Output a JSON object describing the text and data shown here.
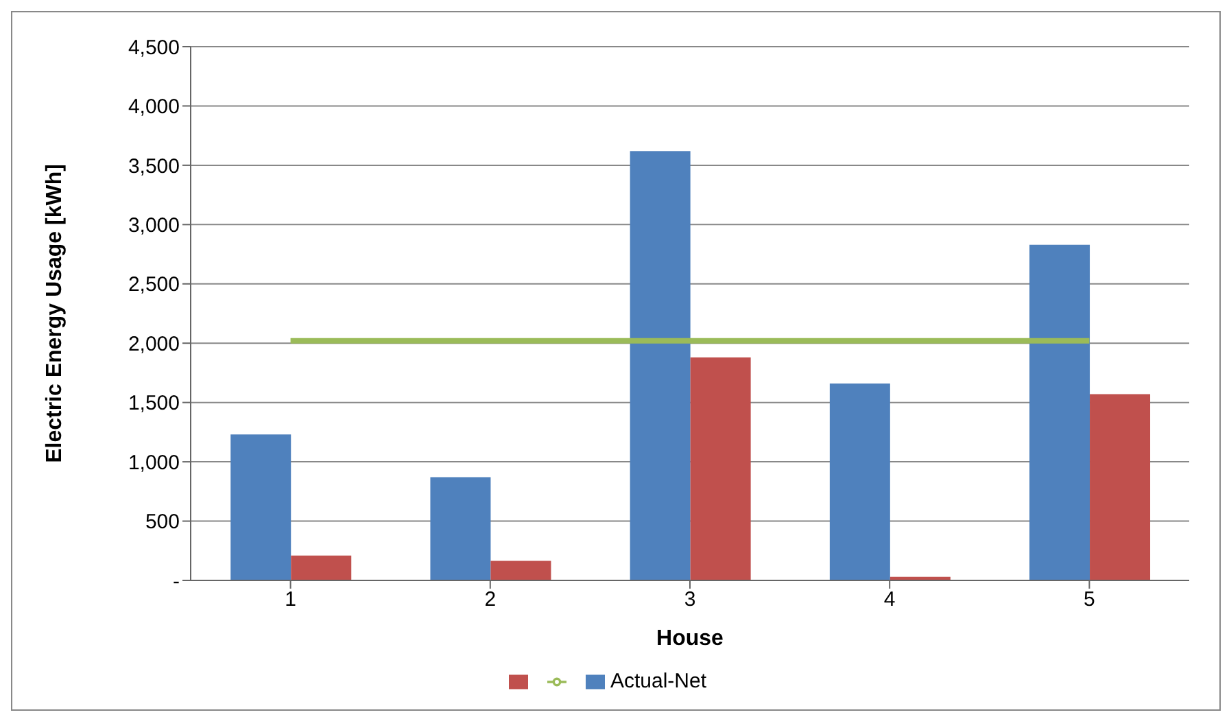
{
  "chart_data": {
    "type": "bar",
    "xlabel": "House",
    "ylabel": "Electric Energy Usage [kWh]",
    "categories": [
      "1",
      "2",
      "3",
      "4",
      "5"
    ],
    "series": [
      {
        "name": "Actual-Net",
        "color": "#4f81bd",
        "values": [
          1230,
          870,
          3620,
          1660,
          2830
        ]
      },
      {
        "color": "#c0504d",
        "values": [
          210,
          165,
          1880,
          30,
          1570
        ]
      },
      {
        "type": "line",
        "color": "#9bbb59",
        "values": [
          2020,
          2020,
          2020,
          2020,
          2020
        ]
      }
    ],
    "ylim": [
      0,
      4500
    ],
    "yticks": [
      {
        "value": 0,
        "label": "-"
      },
      {
        "value": 500,
        "label": "500"
      },
      {
        "value": 1000,
        "label": "1,000"
      },
      {
        "value": 1500,
        "label": "1,500"
      },
      {
        "value": 2000,
        "label": "2,000"
      },
      {
        "value": 2500,
        "label": "2,500"
      },
      {
        "value": 3000,
        "label": "3,000"
      },
      {
        "value": 3500,
        "label": "3,500"
      },
      {
        "value": 4000,
        "label": "4,000"
      },
      {
        "value": 4500,
        "label": "4,500"
      }
    ],
    "grid": "y",
    "legend": "bottom",
    "marker": "none"
  }
}
